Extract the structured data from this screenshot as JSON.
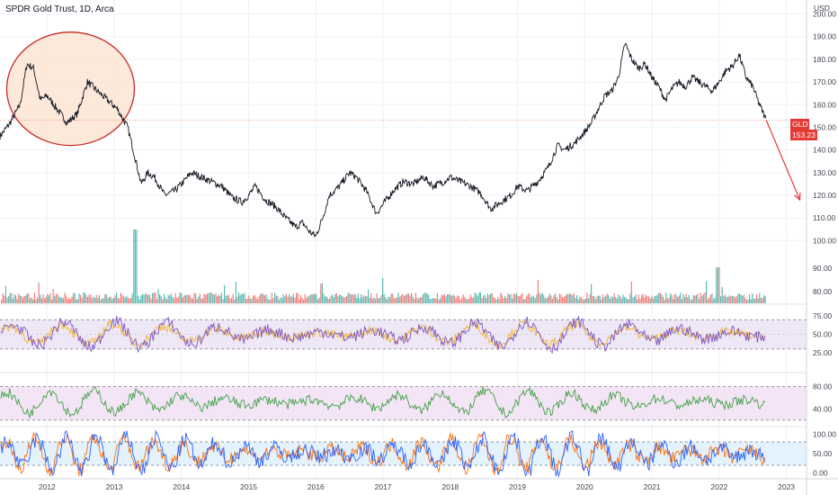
{
  "header": {
    "title": "SPDR Gold Trust, 1D, Arca"
  },
  "price_axis": {
    "currency": "USD"
  },
  "last_price": {
    "symbol": "GLD",
    "value": "153.23"
  },
  "colors": {
    "price_line": "#131722",
    "up_volume": "#26a69a",
    "down_volume": "#ef5350",
    "rsi_line": "#7e57c2",
    "rsi_signal": "#f0b429",
    "rsi_band": "#ede7f6",
    "mfi_line": "#43a047",
    "mfi_band": "#f3e5f5",
    "stoch_k": "#2962ff",
    "stoch_d": "#ff6d00",
    "stoch_band": "#e3f2fd",
    "highlight_circle": "#c62828",
    "highlight_fill": "#fbe3cf",
    "arrow": "#e53935",
    "price_line_marker": "#ef5350"
  },
  "chart_data": [
    {
      "type": "line",
      "name": "price",
      "x_ticks": [
        "2012",
        "2013",
        "2014",
        "2015",
        "2016",
        "2017",
        "2018",
        "2019",
        "2020",
        "2021",
        "2022",
        "2023"
      ],
      "y_ticks": [
        "100.00",
        "110.00",
        "120.00",
        "130.00",
        "140.00",
        "150.00",
        "160.00",
        "170.00",
        "180.00",
        "190.00",
        "200.00"
      ],
      "ylim": [
        93,
        203
      ],
      "xlim": [
        2011.3,
        2023.3
      ],
      "x": [
        2011.3,
        2011.45,
        2011.6,
        2011.7,
        2011.8,
        2011.9,
        2012.0,
        2012.15,
        2012.3,
        2012.45,
        2012.6,
        2012.75,
        2012.9,
        2013.05,
        2013.2,
        2013.3,
        2013.4,
        2013.5,
        2013.6,
        2013.75,
        2013.9,
        2014.0,
        2014.15,
        2014.3,
        2014.45,
        2014.6,
        2014.75,
        2014.9,
        2015.0,
        2015.1,
        2015.25,
        2015.4,
        2015.55,
        2015.7,
        2015.8,
        2015.9,
        2016.0,
        2016.1,
        2016.2,
        2016.35,
        2016.5,
        2016.6,
        2016.75,
        2016.9,
        2017.0,
        2017.15,
        2017.3,
        2017.45,
        2017.6,
        2017.75,
        2017.9,
        2018.0,
        2018.15,
        2018.3,
        2018.45,
        2018.6,
        2018.75,
        2018.9,
        2019.0,
        2019.15,
        2019.3,
        2019.45,
        2019.6,
        2019.7,
        2019.85,
        2020.0,
        2020.1,
        2020.2,
        2020.3,
        2020.4,
        2020.5,
        2020.6,
        2020.7,
        2020.8,
        2020.9,
        2021.0,
        2021.1,
        2021.2,
        2021.3,
        2021.4,
        2021.5,
        2021.6,
        2021.7,
        2021.8,
        2021.9,
        2022.0,
        2022.1,
        2022.2,
        2022.3,
        2022.4,
        2022.5,
        2022.6,
        2022.7
      ],
      "y": [
        146,
        152,
        160,
        178,
        176,
        162,
        164,
        158,
        152,
        156,
        170,
        166,
        162,
        158,
        150,
        138,
        125,
        130,
        128,
        120,
        122,
        125,
        130,
        128,
        126,
        124,
        119,
        117,
        120,
        124,
        118,
        115,
        110,
        106,
        108,
        104,
        102,
        110,
        120,
        124,
        130,
        128,
        122,
        112,
        116,
        122,
        126,
        125,
        128,
        124,
        126,
        128,
        126,
        124,
        121,
        114,
        117,
        120,
        124,
        122,
        126,
        132,
        142,
        140,
        143,
        148,
        152,
        158,
        164,
        166,
        172,
        187,
        180,
        176,
        178,
        172,
        168,
        162,
        167,
        170,
        168,
        172,
        170,
        168,
        166,
        170,
        175,
        177,
        182,
        172,
        168,
        160,
        153.23
      ],
      "annotation_circle": {
        "x_range": [
          2011.4,
          2013.3
        ],
        "y_range": [
          142,
          192
        ]
      },
      "forecast_arrow": {
        "from": [
          2022.7,
          153.23
        ],
        "to": [
          2023.2,
          118
        ]
      },
      "last_value_line": 153.23
    },
    {
      "type": "bar",
      "name": "volume",
      "y_ticks": [
        "80.00",
        "90.00"
      ],
      "note": "volume histogram, red/green columns along the bottom of the price pane"
    },
    {
      "type": "line",
      "name": "rsi",
      "y_ticks": [
        "25.00",
        "50.00",
        "75.00"
      ],
      "ylim": [
        15,
        85
      ],
      "band": [
        30,
        70
      ]
    },
    {
      "type": "line",
      "name": "mfi",
      "y_ticks": [
        "40.00",
        "80.00"
      ],
      "ylim": [
        15,
        95
      ],
      "band": [
        20,
        80
      ]
    },
    {
      "type": "line",
      "name": "stochastic",
      "y_ticks": [
        "0.00",
        "50.00",
        "100.00"
      ],
      "ylim": [
        -10,
        110
      ],
      "band": [
        20,
        80
      ]
    }
  ]
}
